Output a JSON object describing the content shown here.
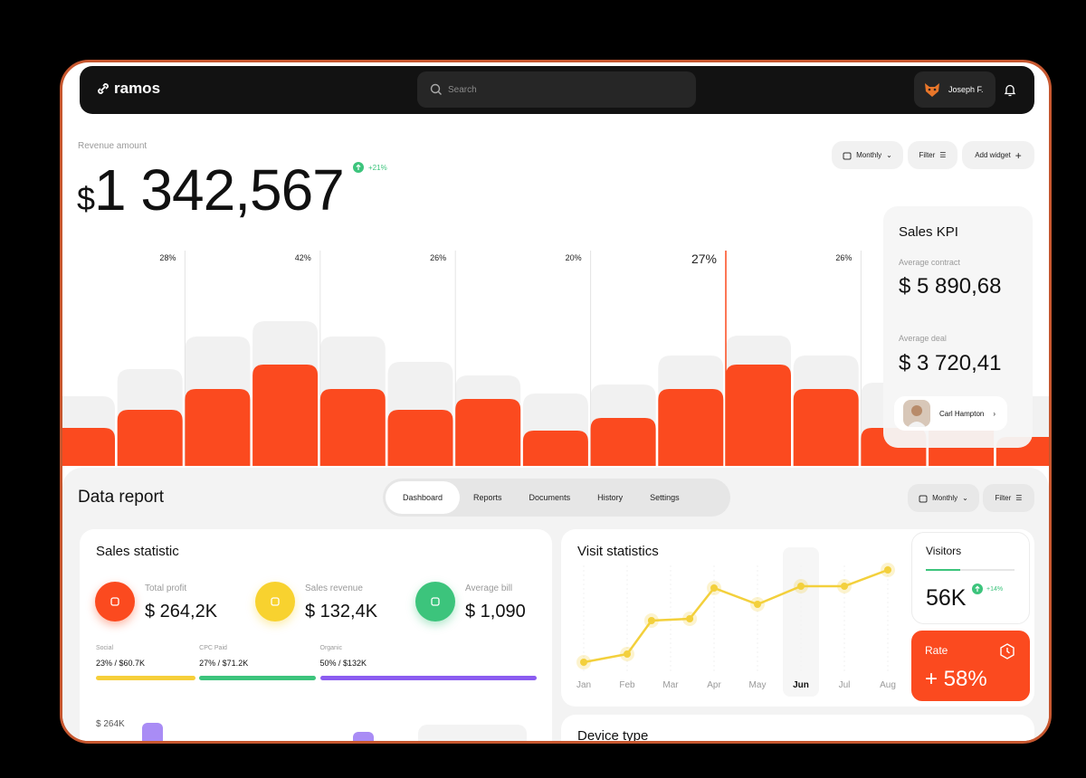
{
  "nav": {
    "logo": "ramos",
    "search_placeholder": "Search",
    "user": "Joseph F."
  },
  "revenue": {
    "label": "Revenue amount",
    "currency": "$",
    "amount": "1 342,567",
    "change": "+21%"
  },
  "toolbar": {
    "buttons": [
      "Monthly",
      "Filter",
      "Add widget"
    ]
  },
  "revenue_chart": {
    "type": "bar",
    "values": [
      42,
      62,
      85,
      112,
      85,
      62,
      74,
      39,
      53,
      85,
      112,
      85,
      42,
      55,
      32
    ],
    "background_values": [
      77,
      107,
      143,
      160,
      143,
      115,
      100,
      80,
      90,
      122,
      144,
      122,
      92,
      90,
      77
    ],
    "color": "#fb4a1f",
    "background_color": "#f1f1f1",
    "markers": [
      "28%",
      "42%",
      "26%",
      "20%",
      "27%",
      "26%"
    ],
    "highlight_marker": 4
  },
  "sales_kpi": {
    "title": "Sales KPI",
    "items": [
      {
        "label": "Average contract",
        "value": "$ 5 890,68"
      },
      {
        "label": "Average deal",
        "value": "$ 3 720,41"
      }
    ],
    "contact": "Carl Hampton"
  },
  "data_report": {
    "title": "Data report",
    "tabs": [
      "Dashboard",
      "Reports",
      "Documents",
      "History",
      "Settings"
    ],
    "active_tab": 0,
    "buttons": [
      "Monthly",
      "Filter"
    ]
  },
  "sales_statistic": {
    "title": "Sales statistic",
    "metrics": [
      {
        "label": "Total profit",
        "value": "$ 264,2K",
        "color": "#fb4a1f"
      },
      {
        "label": "Sales revenue",
        "value": "$ 132,4K",
        "color": "#f8d22f"
      },
      {
        "label": "Average bill",
        "value": "$ 1,090",
        "color": "#3cc47c"
      }
    ],
    "channels": [
      {
        "label": "Social",
        "value": "23% / $60.7K",
        "share": 23,
        "color": "#f6cf3a"
      },
      {
        "label": "CPC Paid",
        "value": "27% / $71.2K",
        "share": 27,
        "color": "#3cc47c"
      },
      {
        "label": "Organic",
        "value": "50% / $132K",
        "share": 50,
        "color": "#8b5cf0"
      }
    ],
    "footer_value": "$ 264K"
  },
  "visit_statistics": {
    "title": "Visit statistics",
    "type": "line",
    "months": [
      "Jan",
      "Feb",
      "Mar",
      "Apr",
      "May",
      "Jun",
      "Jul",
      "Aug"
    ],
    "highlight_month": 5,
    "x": [
      0,
      1,
      1.56,
      2.44,
      3,
      4,
      5,
      6,
      7
    ],
    "values": [
      28,
      37,
      74,
      76,
      110,
      92,
      112,
      112,
      130
    ],
    "color": "#f3d03c"
  },
  "visitors": {
    "title": "Visitors",
    "value": "56K",
    "change": "+14%"
  },
  "rate": {
    "title": "Rate",
    "value": "+ 58%"
  },
  "device_type": {
    "title": "Device type"
  }
}
